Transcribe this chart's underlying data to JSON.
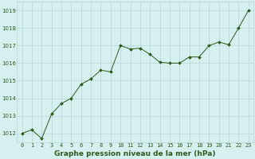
{
  "x": [
    0,
    1,
    2,
    3,
    4,
    5,
    6,
    7,
    8,
    9,
    10,
    11,
    12,
    13,
    14,
    15,
    16,
    17,
    18,
    19,
    20,
    21,
    22,
    23
  ],
  "y": [
    1012.0,
    1012.2,
    1011.7,
    1013.1,
    1013.7,
    1014.0,
    1014.8,
    1015.1,
    1015.6,
    1015.5,
    1017.0,
    1016.8,
    1016.85,
    1016.5,
    1016.05,
    1016.0,
    1016.0,
    1016.35,
    1016.35,
    1017.0,
    1017.2,
    1017.05,
    1018.0,
    1019.0
  ],
  "line_color": "#2d5a1b",
  "marker": "D",
  "marker_size": 2.0,
  "bg_color": "#d6f0f0",
  "grid_color": "#b8d4d4",
  "ylabel_ticks": [
    1012,
    1013,
    1014,
    1015,
    1016,
    1017,
    1018,
    1019
  ],
  "xlabel_ticks": [
    0,
    1,
    2,
    3,
    4,
    5,
    6,
    7,
    8,
    9,
    10,
    11,
    12,
    13,
    14,
    15,
    16,
    17,
    18,
    19,
    20,
    21,
    22,
    23
  ],
  "ylim": [
    1011.5,
    1019.5
  ],
  "xlim": [
    -0.5,
    23.5
  ],
  "xlabel": "Graphe pression niveau de la mer (hPa)",
  "tick_fontsize": 5.0,
  "xlabel_fontsize": 6.5
}
